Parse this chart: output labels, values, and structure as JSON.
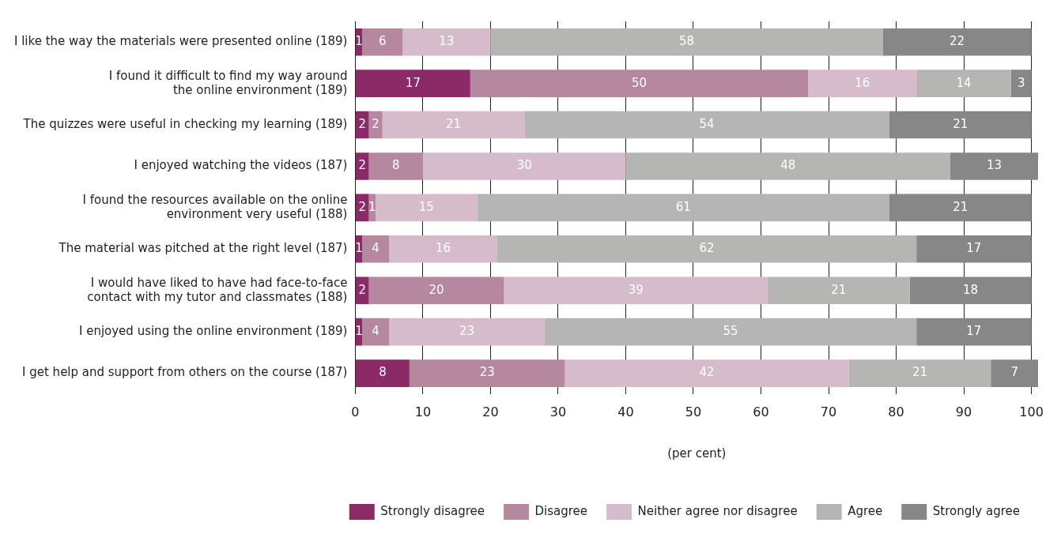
{
  "chart_data": {
    "type": "bar",
    "orientation": "horizontal",
    "stacked": true,
    "categories": [
      "I like the way the materials were presented online (189)",
      "I found it difficult to find my way around\nthe online environment (189)",
      "The quizzes were useful in checking my learning (189)",
      "I enjoyed watching the videos (187)",
      "I found the resources available on the online\nenvironment very useful (188)",
      "The material was pitched at the right level (187)",
      "I would have liked to have had face-to-face\ncontact with my tutor and classmates (188)",
      "I enjoyed using the online environment (189)",
      "I get help and support from others on the course (187)"
    ],
    "series": [
      {
        "name": "Strongly disagree",
        "color": "#8b2a66",
        "values": [
          1,
          17,
          2,
          2,
          2,
          1,
          2,
          1,
          8
        ]
      },
      {
        "name": "Disagree",
        "color": "#b5889f",
        "values": [
          6,
          50,
          2,
          8,
          1,
          4,
          20,
          4,
          23
        ]
      },
      {
        "name": "Neither agree nor disagree",
        "color": "#d6bccb",
        "values": [
          13,
          16,
          21,
          30,
          15,
          16,
          39,
          23,
          42
        ]
      },
      {
        "name": "Agree",
        "color": "#b5b5b4",
        "values": [
          58,
          14,
          54,
          48,
          61,
          62,
          21,
          55,
          21
        ]
      },
      {
        "name": "Strongly agree",
        "color": "#878787",
        "values": [
          22,
          3,
          21,
          13,
          21,
          17,
          18,
          17,
          7
        ]
      }
    ],
    "xlabel": "(per cent)",
    "xlim": [
      0,
      101
    ],
    "xticks": [
      0,
      10,
      20,
      30,
      40,
      50,
      60,
      70,
      80,
      90,
      100
    ],
    "grid": "x",
    "legend": "bottom",
    "data_labels": true
  }
}
